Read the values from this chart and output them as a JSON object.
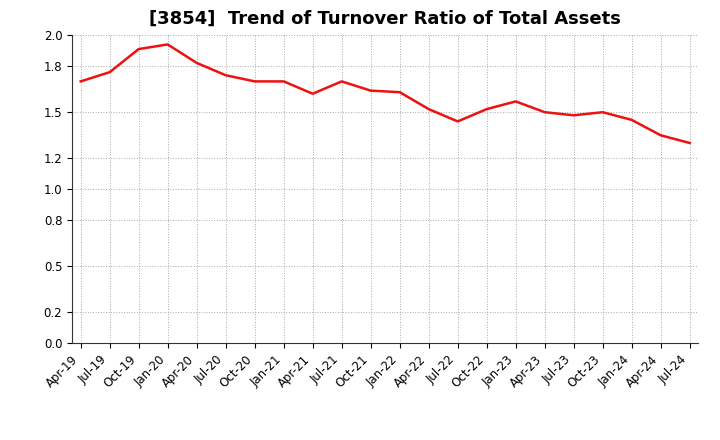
{
  "title": "[3854]  Trend of Turnover Ratio of Total Assets",
  "x_labels": [
    "Apr-19",
    "Jul-19",
    "Oct-19",
    "Jan-20",
    "Apr-20",
    "Jul-20",
    "Oct-20",
    "Jan-21",
    "Apr-21",
    "Jul-21",
    "Oct-21",
    "Jan-22",
    "Apr-22",
    "Jul-22",
    "Oct-22",
    "Jan-23",
    "Apr-23",
    "Jul-23",
    "Oct-23",
    "Jan-24",
    "Apr-24",
    "Jul-24"
  ],
  "values": [
    1.7,
    1.76,
    1.91,
    1.94,
    1.82,
    1.74,
    1.7,
    1.7,
    1.62,
    1.7,
    1.64,
    1.63,
    1.52,
    1.44,
    1.52,
    1.57,
    1.5,
    1.48,
    1.5,
    1.45,
    1.35,
    1.3
  ],
  "line_color": "#ee1111",
  "line_width": 1.8,
  "ylim": [
    0.0,
    2.0
  ],
  "yticks": [
    0.0,
    0.2,
    0.5,
    0.8,
    1.0,
    1.2,
    1.5,
    1.8,
    2.0
  ],
  "bg_color": "#ffffff",
  "grid_color": "#aaaaaa",
  "title_fontsize": 13,
  "tick_fontsize": 8.5
}
